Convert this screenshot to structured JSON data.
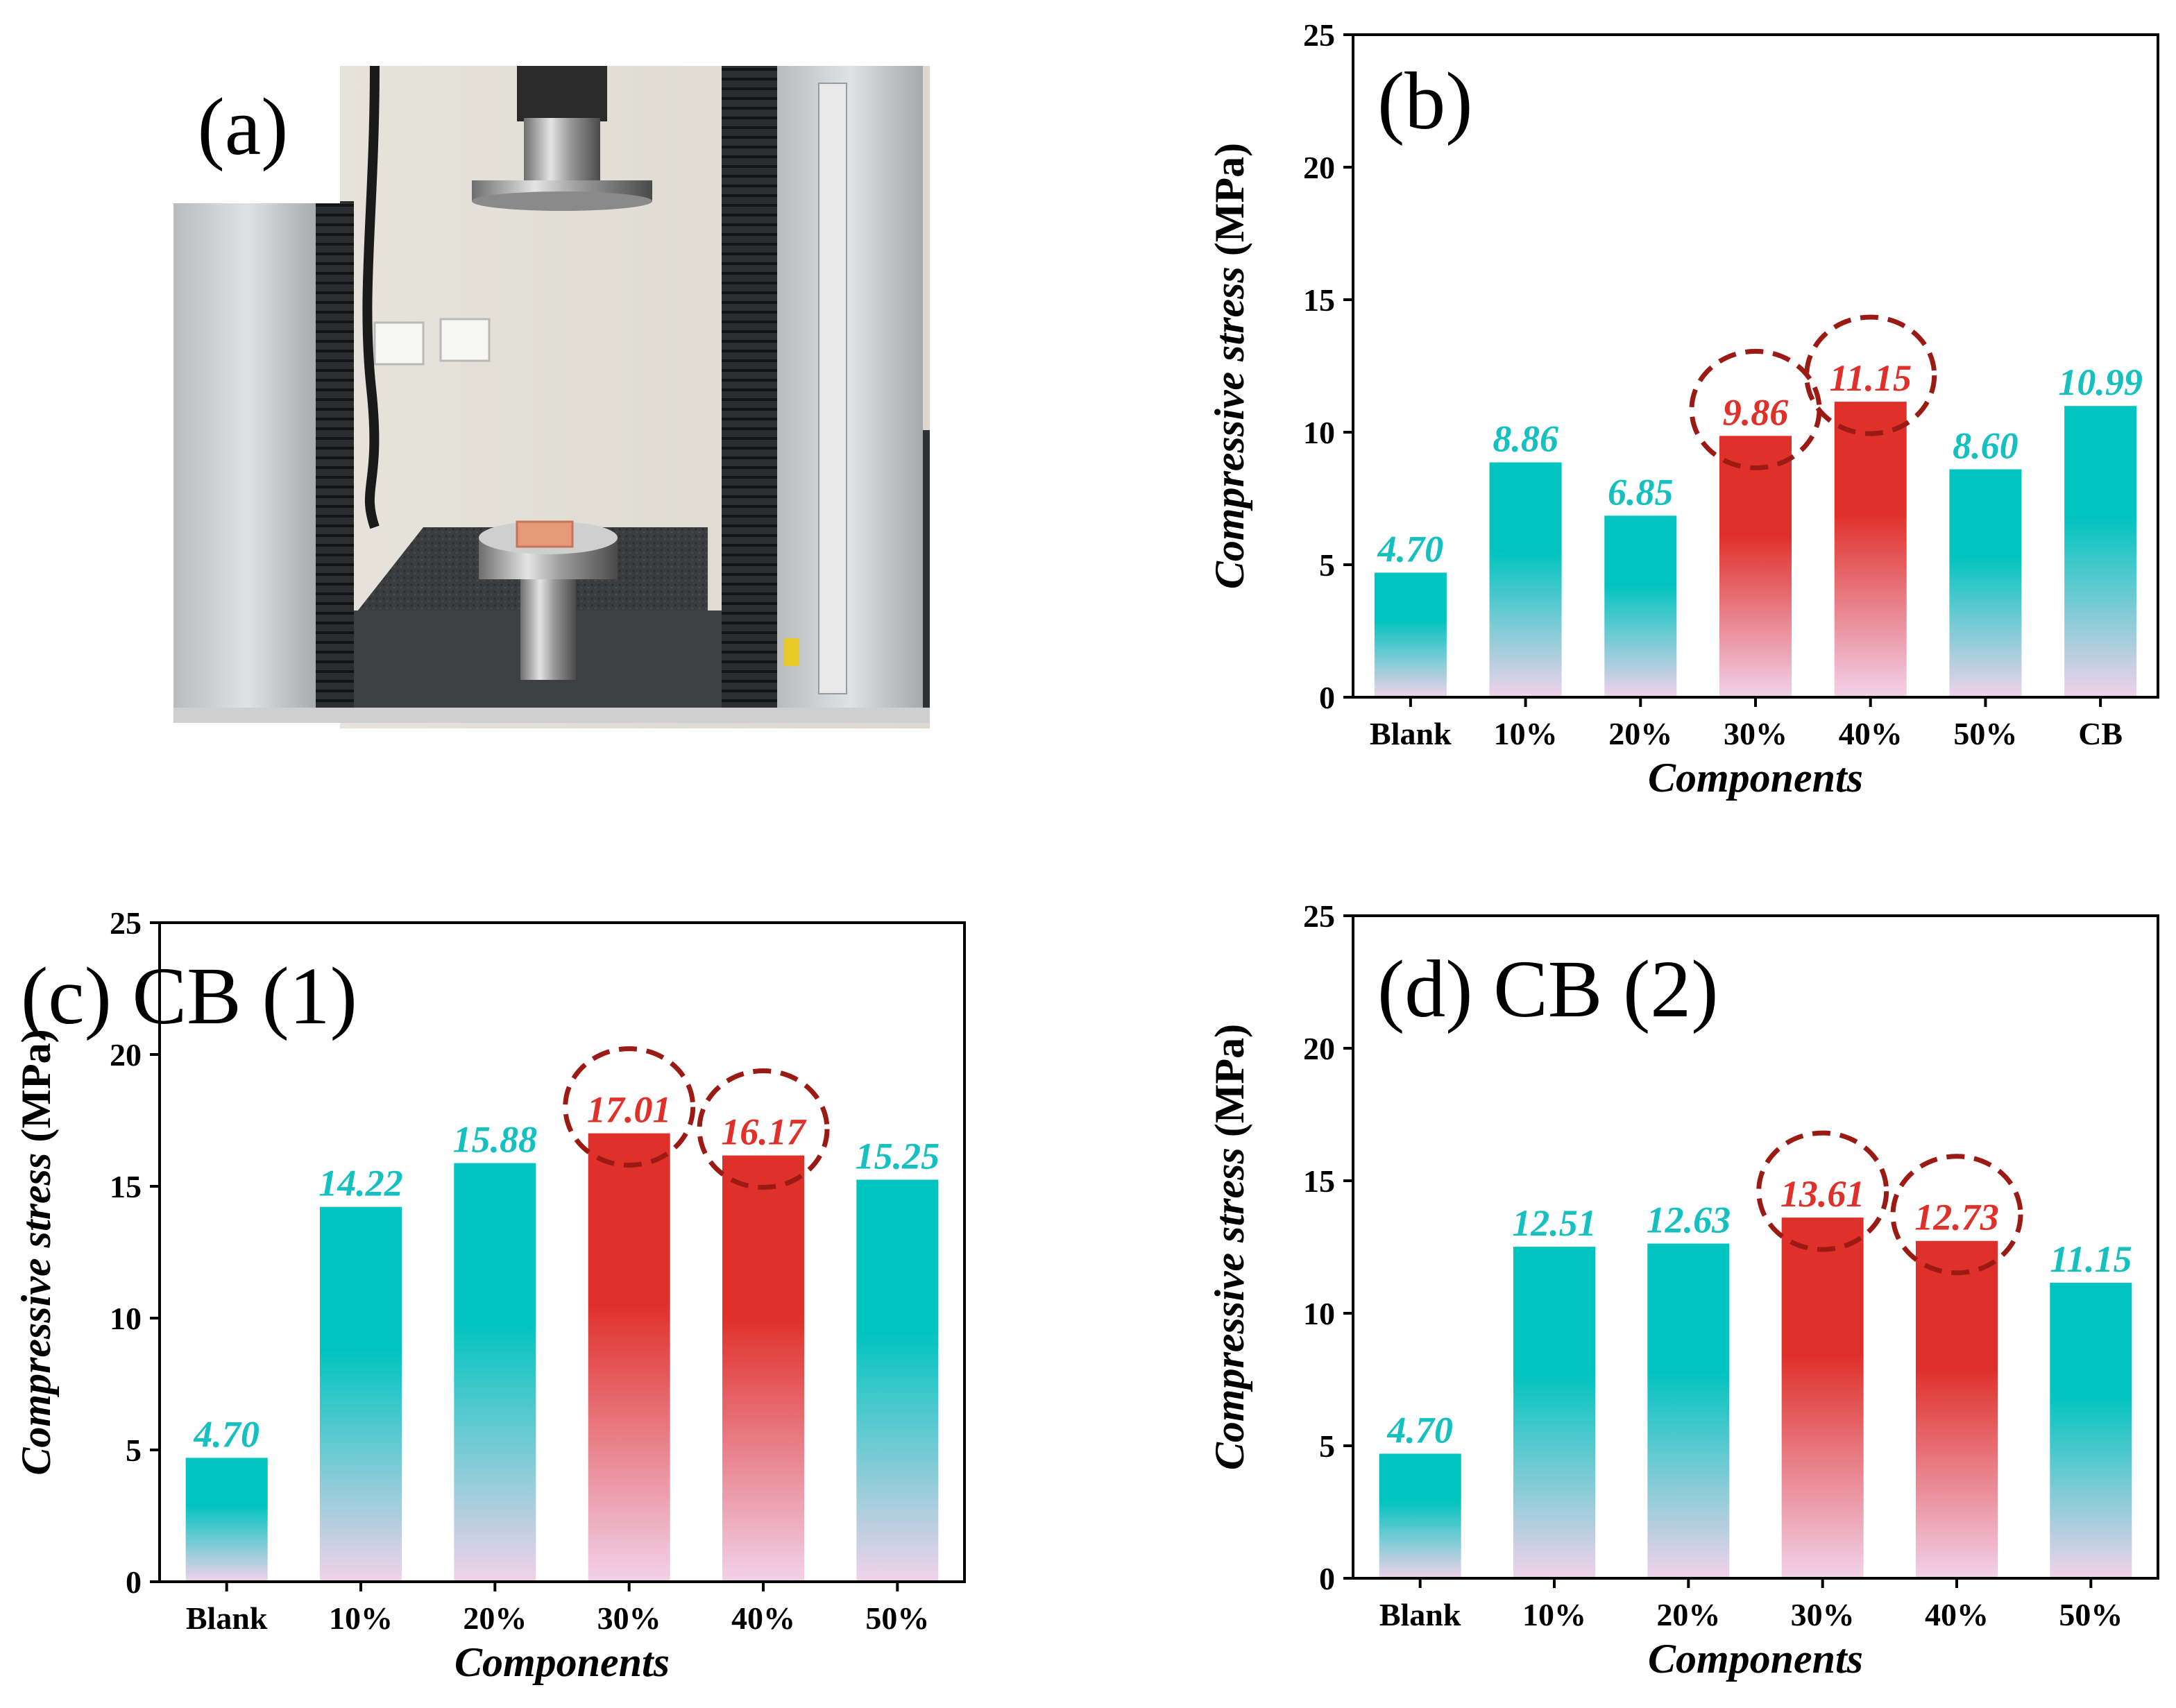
{
  "photo_panel": {
    "label": "(a)",
    "description_icon": "testing-machine-photo"
  },
  "colors": {
    "teal": "#00c4c0",
    "red": "#e0302a",
    "pink": "#f2d2ea",
    "circle": "#9b1b14",
    "teal_text": "#14c0c0",
    "red_text": "#e0302a"
  },
  "chart_data": [
    {
      "id": "b",
      "type": "bar",
      "title": "(b)",
      "xlabel": "Components",
      "ylabel_italic": "Compressive stress",
      "ylabel_unit": "(MPa)",
      "categories": [
        "Blank",
        "10%",
        "20%",
        "30%",
        "40%",
        "50%",
        "CB"
      ],
      "values": [
        4.7,
        8.86,
        6.85,
        9.86,
        11.15,
        8.6,
        10.99
      ],
      "value_labels": [
        "4.70",
        "8.86",
        "6.85",
        "9.86",
        "11.15",
        "8.60",
        "10.99"
      ],
      "highlighted": [
        "30%",
        "40%"
      ],
      "ylim": [
        0,
        25
      ],
      "yticks": [
        "0",
        "5",
        "10",
        "15",
        "20",
        "25"
      ]
    },
    {
      "id": "c",
      "type": "bar",
      "title": "(c) CB (1)",
      "xlabel": "Components",
      "ylabel_italic": "Compressive stress",
      "ylabel_unit": "(MPa)",
      "categories": [
        "Blank",
        "10%",
        "20%",
        "30%",
        "40%",
        "50%"
      ],
      "values": [
        4.7,
        14.22,
        15.88,
        17.01,
        16.17,
        15.25
      ],
      "value_labels": [
        "4.70",
        "14.22",
        "15.88",
        "17.01",
        "16.17",
        "15.25"
      ],
      "highlighted": [
        "30%",
        "40%"
      ],
      "ylim": [
        0,
        25
      ],
      "yticks": [
        "0",
        "5",
        "10",
        "15",
        "20",
        "25"
      ]
    },
    {
      "id": "d",
      "type": "bar",
      "title": "(d) CB (2)",
      "xlabel": "Components",
      "ylabel_italic": "Compressive stress",
      "ylabel_unit": "(MPa)",
      "categories": [
        "Blank",
        "10%",
        "20%",
        "30%",
        "40%",
        "50%"
      ],
      "values": [
        4.7,
        12.51,
        12.63,
        13.61,
        12.73,
        11.15
      ],
      "value_labels": [
        "4.70",
        "12.51",
        "12.63",
        "13.61",
        "12.73",
        "11.15"
      ],
      "highlighted": [
        "30%",
        "40%"
      ],
      "ylim": [
        0,
        25
      ],
      "yticks": [
        "0",
        "5",
        "10",
        "15",
        "20",
        "25"
      ]
    }
  ]
}
